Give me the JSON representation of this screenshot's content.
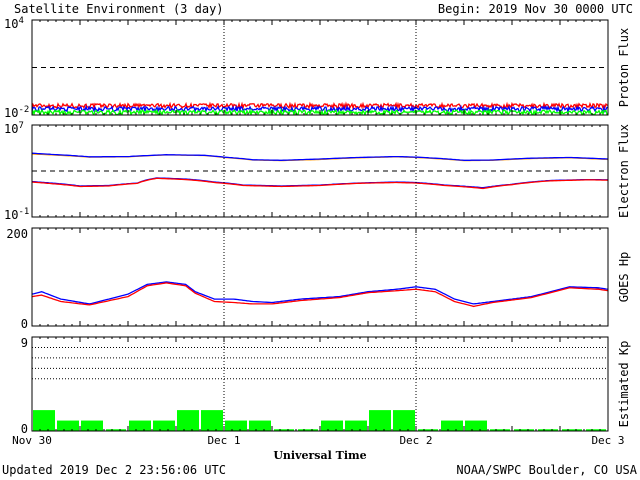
{
  "header": {
    "title": "Satellite Environment (3 day)",
    "begin": "Begin:  2019 Nov 30 0000 UTC"
  },
  "footer": {
    "updated": "Updated 2019 Dec  2 23:56:06 UTC",
    "credit": "NOAA/SWPC Boulder, CO USA"
  },
  "x_axis": {
    "label": "Universal Time",
    "ticks": [
      "Nov 30",
      "Dec 1",
      "Dec 2",
      "Dec 3"
    ]
  },
  "colors": {
    "red": "#ff0000",
    "blue": "#0000ff",
    "green": "#00ff00",
    "orange": "#ff9900",
    "axis": "#000000"
  },
  "chart_data": [
    {
      "type": "line",
      "name": "Proton Flux",
      "ylabel": "Proton Flux",
      "yscale": "log",
      "ylim": [
        0.01,
        10000
      ],
      "ytick_base": "10",
      "ytick_exps": [
        "4",
        "-2"
      ],
      "threshold": 10,
      "x_days": [
        0,
        3
      ],
      "series": [
        {
          "color": "red",
          "level": 0.04,
          "noise": 0.012
        },
        {
          "color": "blue",
          "level": 0.025,
          "noise": 0.008
        },
        {
          "color": "green",
          "level": 0.015,
          "noise": 0.005
        }
      ]
    },
    {
      "type": "line",
      "name": "Electron Flux",
      "ylabel": "Electron Flux",
      "yscale": "log",
      "ylim": [
        0.1,
        10000000
      ],
      "ytick_base": "10",
      "ytick_exps": [
        "7",
        "-1"
      ],
      "threshold": 1000,
      "series": [
        {
          "color": "orange",
          "x": [
            0,
            0.1,
            0.3,
            0.5,
            0.7,
            0.9,
            1.0,
            1.15,
            1.3,
            1.5,
            1.7,
            1.9,
            2.0,
            2.1,
            2.25,
            2.4,
            2.6,
            2.8,
            3.0
          ],
          "y": [
            30000,
            25000,
            16000,
            17000,
            25000,
            22000,
            15000,
            9000,
            8000,
            10000,
            14000,
            17000,
            15000,
            12000,
            8000,
            8500,
            12000,
            14000,
            10000
          ]
        },
        {
          "color": "blue",
          "x": [
            0,
            0.1,
            0.3,
            0.5,
            0.7,
            0.9,
            1.0,
            1.15,
            1.3,
            1.5,
            1.7,
            1.9,
            2.0,
            2.1,
            2.25,
            2.4,
            2.6,
            2.8,
            3.0
          ],
          "y": [
            35000,
            28000,
            17000,
            18000,
            26000,
            23000,
            16000,
            9500,
            8500,
            11000,
            15000,
            18000,
            16000,
            13000,
            8500,
            9000,
            13000,
            15000,
            11000
          ]
        },
        {
          "color": "blue",
          "x": [
            0,
            0.1,
            0.25,
            0.4,
            0.55,
            0.65,
            0.8,
            0.95,
            1.1,
            1.3,
            1.5,
            1.7,
            1.9,
            2.0,
            2.15,
            2.35,
            2.5,
            2.7,
            2.9,
            3.0
          ],
          "y": [
            120,
            90,
            50,
            55,
            90,
            250,
            200,
            110,
            60,
            50,
            60,
            90,
            110,
            100,
            60,
            35,
            70,
            150,
            180,
            170
          ]
        },
        {
          "color": "red",
          "x": [
            0,
            0.1,
            0.25,
            0.4,
            0.55,
            0.65,
            0.8,
            0.95,
            1.1,
            1.3,
            1.5,
            1.7,
            1.9,
            2.0,
            2.15,
            2.35,
            2.5,
            2.7,
            2.9,
            3.0
          ],
          "y": [
            110,
            80,
            45,
            50,
            85,
            230,
            180,
            100,
            55,
            45,
            55,
            85,
            100,
            90,
            55,
            30,
            65,
            140,
            170,
            160
          ]
        }
      ]
    },
    {
      "type": "line",
      "name": "GOES Hp",
      "ylabel": "GOES Hp",
      "ylim": [
        0,
        200
      ],
      "yticks": [
        "200",
        "0"
      ],
      "series": [
        {
          "color": "blue",
          "x": [
            0,
            0.05,
            0.15,
            0.3,
            0.5,
            0.6,
            0.7,
            0.8,
            0.85,
            0.95,
            1.05,
            1.15,
            1.25,
            1.4,
            1.6,
            1.75,
            1.9,
            2.0,
            2.1,
            2.2,
            2.3,
            2.4,
            2.6,
            2.8,
            2.95,
            3.0
          ],
          "y": [
            65,
            70,
            55,
            45,
            65,
            85,
            90,
            85,
            70,
            55,
            55,
            50,
            48,
            55,
            60,
            70,
            75,
            80,
            75,
            55,
            45,
            50,
            60,
            80,
            78,
            75
          ]
        },
        {
          "color": "red",
          "x": [
            0,
            0.05,
            0.15,
            0.3,
            0.5,
            0.6,
            0.7,
            0.8,
            0.85,
            0.95,
            1.05,
            1.15,
            1.25,
            1.4,
            1.6,
            1.75,
            1.9,
            2.0,
            2.1,
            2.2,
            2.3,
            2.4,
            2.6,
            2.8,
            2.95,
            3.0
          ],
          "y": [
            60,
            63,
            50,
            43,
            60,
            82,
            88,
            82,
            67,
            50,
            48,
            45,
            45,
            52,
            58,
            68,
            72,
            75,
            70,
            50,
            40,
            48,
            58,
            78,
            75,
            72
          ]
        }
      ]
    },
    {
      "type": "bar",
      "name": "Estimated Kp",
      "ylabel": "Estimated Kp",
      "ylim": [
        0,
        9
      ],
      "yticks": [
        "9",
        "0"
      ],
      "bar_color": "green",
      "values": [
        2,
        1,
        1,
        0,
        1,
        1,
        2,
        2,
        1,
        1,
        0,
        0,
        1,
        1,
        2,
        2,
        0,
        1,
        1,
        0,
        0,
        0,
        0,
        0
      ]
    }
  ]
}
